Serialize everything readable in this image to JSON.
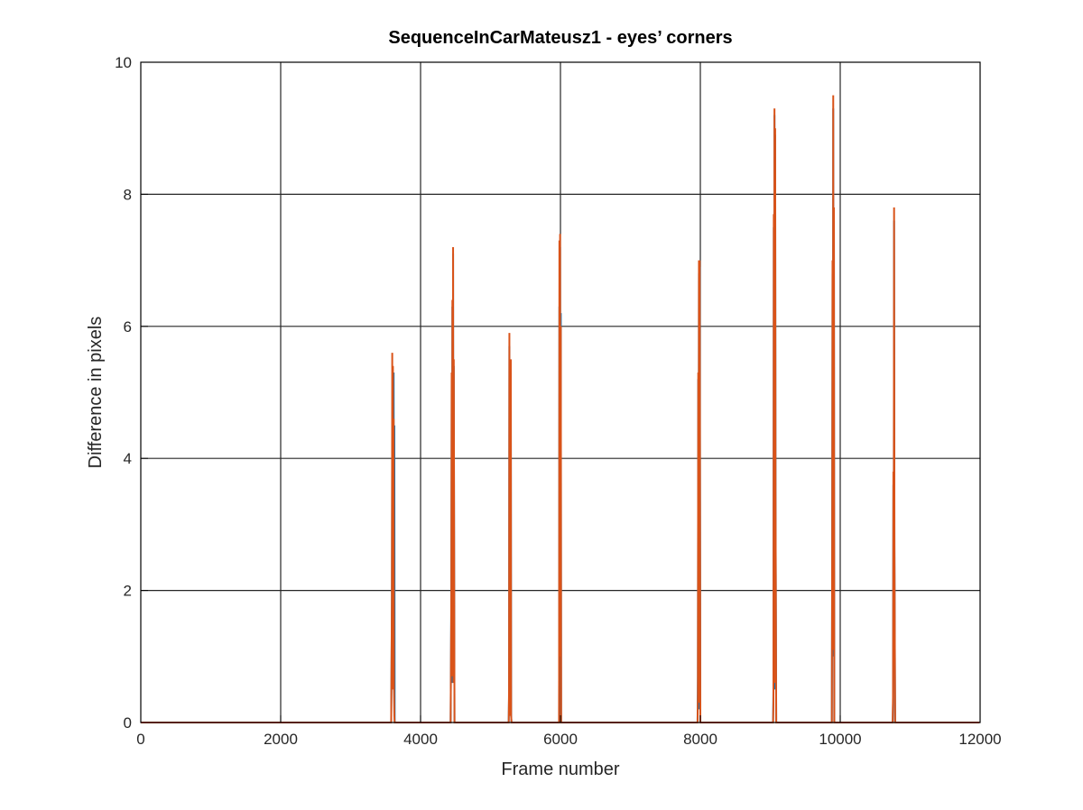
{
  "chart_data": {
    "type": "line",
    "title": "SequenceInCarMateusz1 - eyes’ corners",
    "xlabel": "Frame number",
    "ylabel": "Difference in pixels",
    "xlim": [
      0,
      12000
    ],
    "ylim": [
      0,
      10
    ],
    "xticks": [
      0,
      2000,
      4000,
      6000,
      8000,
      10000,
      12000
    ],
    "yticks": [
      0,
      2,
      4,
      6,
      8,
      10
    ],
    "xtick_labels": [
      "0",
      "2000",
      "4000",
      "6000",
      "8000",
      "10000",
      "12000"
    ],
    "ytick_labels": [
      "0",
      "2",
      "4",
      "6",
      "8",
      "10"
    ],
    "grid": true,
    "legend": "none",
    "colors": {
      "series_1": "#0072BD",
      "series_2": "#D95319",
      "grid": "#262626",
      "axes": "#000000"
    },
    "series": [
      {
        "x": [
          0,
          3580,
          3590,
          3595,
          3600,
          3605,
          3610,
          3615,
          3620,
          3625,
          3630,
          3640,
          4430,
          4440,
          4445,
          4450,
          4455,
          4460,
          4465,
          4470,
          4475,
          4480,
          4485,
          4490,
          4500,
          5260,
          5265,
          5270,
          5275,
          5280,
          5285,
          5290,
          5295,
          5300,
          5310,
          5980,
          5985,
          5990,
          5995,
          6000,
          6005,
          6010,
          6020,
          7960,
          7965,
          7970,
          7975,
          7980,
          7985,
          7990,
          8000,
          9040,
          9045,
          9050,
          9055,
          9060,
          9065,
          9070,
          9075,
          9085,
          9880,
          9885,
          9890,
          9895,
          9900,
          9905,
          9910,
          9915,
          9925,
          10750,
          10755,
          10760,
          10765,
          10770,
          10775,
          10785,
          11990
        ],
        "y": [
          0,
          0,
          1.8,
          4.7,
          1.6,
          4.5,
          0.6,
          5.3,
          1.6,
          4.5,
          0,
          0,
          0,
          1.9,
          5.2,
          0.6,
          6.3,
          1.4,
          7.1,
          0.7,
          5.4,
          2.6,
          0,
          0,
          0,
          0,
          0.4,
          5.7,
          0.2,
          5.3,
          2.0,
          5.3,
          0.1,
          0,
          0,
          0,
          6.3,
          1.0,
          7.2,
          1.2,
          6.2,
          0,
          0,
          0,
          0.7,
          5.2,
          0.2,
          6.8,
          2.2,
          6.9,
          0,
          0,
          0.5,
          7.5,
          3.4,
          9.2,
          0.5,
          8.9,
          3.5,
          0,
          0,
          2.6,
          6.8,
          1.0,
          9.3,
          2.7,
          7.6,
          0,
          0,
          0,
          0.3,
          3.6,
          1.8,
          7.6,
          2.6,
          0,
          0
        ]
      },
      {
        "x": [
          0,
          3580,
          3590,
          3595,
          3600,
          3605,
          3610,
          3615,
          3620,
          3625,
          3630,
          3640,
          4430,
          4440,
          4445,
          4450,
          4455,
          4460,
          4465,
          4470,
          4475,
          4480,
          4485,
          4490,
          4500,
          5260,
          5265,
          5270,
          5275,
          5280,
          5285,
          5290,
          5295,
          5300,
          5310,
          5980,
          5985,
          5990,
          5995,
          6000,
          6005,
          6010,
          6020,
          7960,
          7965,
          7970,
          7975,
          7980,
          7985,
          7990,
          8000,
          9040,
          9045,
          9050,
          9055,
          9060,
          9065,
          9070,
          9075,
          9085,
          9880,
          9885,
          9890,
          9895,
          9900,
          9905,
          9910,
          9915,
          9925,
          10750,
          10755,
          10760,
          10765,
          10770,
          10775,
          10785,
          11990
        ],
        "y": [
          0,
          0,
          1.9,
          5.6,
          0.5,
          5.4,
          0.5,
          4.6,
          0.5,
          0.1,
          0,
          0,
          0,
          2.0,
          5.3,
          0.7,
          6.4,
          0.7,
          7.2,
          0.6,
          5.5,
          2.7,
          0,
          0,
          0,
          0,
          0.5,
          5.9,
          0.2,
          5.2,
          0.1,
          5.5,
          0.1,
          0,
          0,
          0,
          7.3,
          1.0,
          7.4,
          1.0,
          6.0,
          0,
          0,
          0,
          0.4,
          5.3,
          0.3,
          7.0,
          0.3,
          7.0,
          0,
          0,
          0.3,
          7.7,
          3.5,
          9.3,
          0.6,
          9.0,
          3.5,
          0,
          0,
          2.7,
          7.0,
          1.1,
          9.5,
          2.8,
          7.8,
          0,
          0,
          0,
          0.4,
          3.8,
          1.9,
          7.8,
          2.8,
          0,
          0
        ]
      }
    ]
  }
}
